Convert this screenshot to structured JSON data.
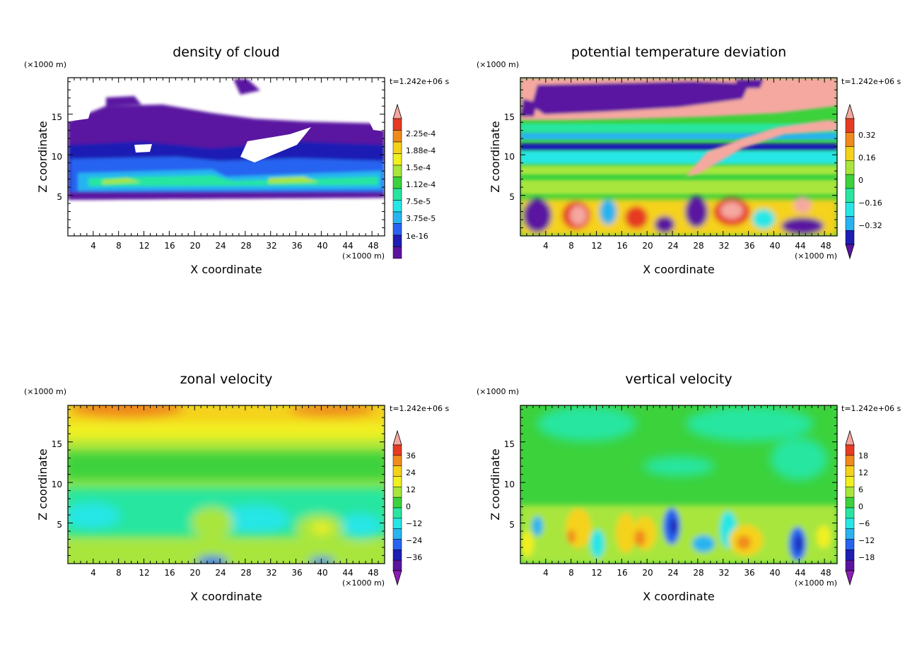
{
  "chart_data": [
    {
      "type": "heatmap",
      "title": "density of cloud",
      "xlabel": "X coordinate",
      "ylabel": "Z coordinate",
      "x_unit": "(×1000 m)",
      "y_unit": "(×1000 m)",
      "time_label": "t=1.242e+06 s",
      "xlim": [
        0,
        50
      ],
      "ylim": [
        0,
        19.5
      ],
      "x_ticks": [
        "4",
        "8",
        "12",
        "16",
        "20",
        "24",
        "28",
        "32",
        "36",
        "40",
        "44",
        "48"
      ],
      "y_ticks": [
        "5",
        "10",
        "15"
      ],
      "colorbar": {
        "labels": [
          "2.25e-4",
          "1.88e-4",
          "1.5e-4",
          "1.12e-4",
          "7.5e-5",
          "3.75e-5",
          "1e-16"
        ],
        "colors": [
          "#f5a8a0",
          "#e63b22",
          "#f08a1a",
          "#f5d21a",
          "#f0f020",
          "#a8e63c",
          "#3cd23c",
          "#28e6a0",
          "#28e6e6",
          "#28b4f0",
          "#2864f0",
          "#1e1eb4",
          "#5a14a0"
        ],
        "extend_max": true,
        "extend_min": false
      },
      "field_summary": "cloud layer between z≈5 and z≈18 (×1000 m); densest band (green–cyan) near z≈6–8, thin dark-purple low-density cloud aloft with gaps, clear air below z=5 and above z≈18"
    },
    {
      "type": "heatmap",
      "title": "potential temperature deviation",
      "xlabel": "X coordinate",
      "ylabel": "Z coordinate",
      "x_unit": "(×1000 m)",
      "y_unit": "(×1000 m)",
      "time_label": "t=1.242e+06 s",
      "xlim": [
        0,
        50
      ],
      "ylim": [
        0,
        19.5
      ],
      "x_ticks": [
        "4",
        "8",
        "12",
        "16",
        "20",
        "24",
        "28",
        "32",
        "36",
        "40",
        "44",
        "48"
      ],
      "y_ticks": [
        "5",
        "10",
        "15"
      ],
      "colorbar": {
        "labels": [
          "0.32",
          "0.16",
          "0",
          "−0.16",
          "−0.32"
        ],
        "colors": [
          "#f5a8a0",
          "#e63b22",
          "#f08a1a",
          "#f5d21a",
          "#a8e63c",
          "#3cd23c",
          "#28e6a0",
          "#28e6e6",
          "#28b4f0",
          "#1e1eb4",
          "#5a14a0"
        ],
        "extend_max": true,
        "extend_min": true
      },
      "field_summary": "strong negative (purple) and strongly positive (pink) deviations above z≈15; horizontal green/cyan banding between z≈5 and z≈14 with a dark-blue band near z≈11; a pink tongue rising from x≈24 to x≈36; mixed positive/negative cells below z≈5"
    },
    {
      "type": "heatmap",
      "title": "zonal velocity",
      "xlabel": "X coordinate",
      "ylabel": "Z coordinate",
      "x_unit": "(×1000 m)",
      "y_unit": "(×1000 m)",
      "time_label": "t=1.242e+06 s",
      "xlim": [
        0,
        50
      ],
      "ylim": [
        0,
        19.5
      ],
      "x_ticks": [
        "4",
        "8",
        "12",
        "16",
        "20",
        "24",
        "28",
        "32",
        "36",
        "40",
        "44",
        "48"
      ],
      "y_ticks": [
        "5",
        "10",
        "15"
      ],
      "colorbar": {
        "labels": [
          "36",
          "24",
          "12",
          "0",
          "−12",
          "−24",
          "−36"
        ],
        "colors": [
          "#f5a8a0",
          "#e63b22",
          "#f08a1a",
          "#f5d21a",
          "#f0f020",
          "#a8e63c",
          "#3cd23c",
          "#28e6a0",
          "#28e6e6",
          "#28b4f0",
          "#2864f0",
          "#1e1eb4",
          "#5a14a0",
          "#8c1eb4"
        ],
        "extend_max": true,
        "extend_min": true
      },
      "field_summary": "positive (orange/yellow) flow near the top z≈17–19.5; green around z≈10–15; cyan (slightly negative) patches between z≈2 and z≈8 with yellow-green cells near x≈20–26 and x≈36–40; small blue spots at the bottom near x≈22 and x≈40"
    },
    {
      "type": "heatmap",
      "title": "vertical velocity",
      "xlabel": "X coordinate",
      "ylabel": "Z coordinate",
      "x_unit": "(×1000 m)",
      "y_unit": "(×1000 m)",
      "time_label": "t=1.242e+06 s",
      "xlim": [
        0,
        50
      ],
      "ylim": [
        0,
        19.5
      ],
      "x_ticks": [
        "4",
        "8",
        "12",
        "16",
        "20",
        "24",
        "28",
        "32",
        "36",
        "40",
        "44",
        "48"
      ],
      "y_ticks": [
        "5",
        "10",
        "15"
      ],
      "colorbar": {
        "labels": [
          "18",
          "12",
          "6",
          "0",
          "−6",
          "−12",
          "−18"
        ],
        "colors": [
          "#f5a8a0",
          "#e63b22",
          "#f08a1a",
          "#f5d21a",
          "#f0f020",
          "#a8e63c",
          "#3cd23c",
          "#28e6a0",
          "#28e6e6",
          "#28b4f0",
          "#2864f0",
          "#1e1eb4",
          "#5a14a0",
          "#8c1eb4"
        ],
        "extend_max": true,
        "extend_min": true
      },
      "field_summary": "near-zero (green) above z≈8; below z≈8 alternating updrafts (yellow/orange) near x≈9, x≈16–20, x≈32–34 and downdrafts (blue) near x≈23, x≈28, x≈43"
    }
  ]
}
